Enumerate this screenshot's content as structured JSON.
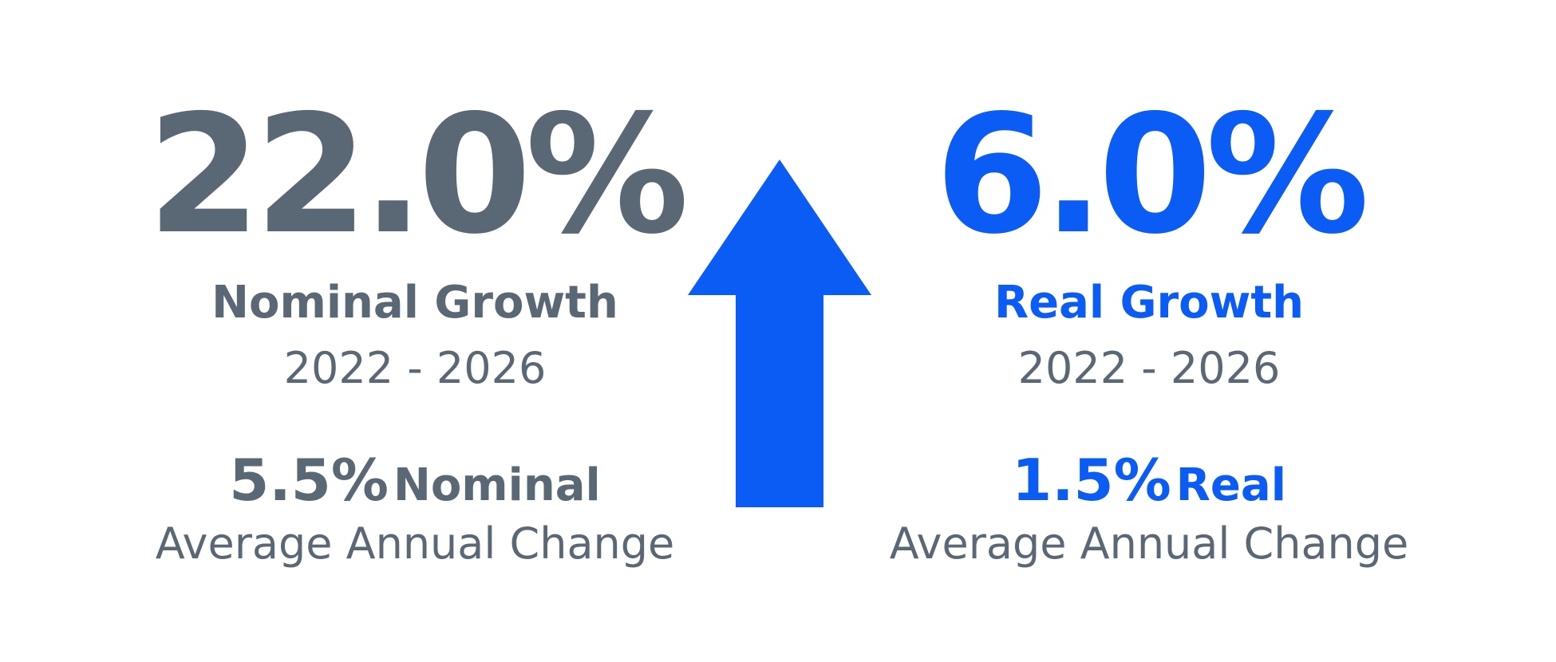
{
  "colors": {
    "nominal": "#5a6775",
    "real": "#0a5cf5",
    "arrow": "#0a5cf5"
  },
  "nominal": {
    "value": "22.0%",
    "label": "Nominal Growth",
    "period": "2022 - 2026",
    "annual_value": "5.5%",
    "annual_unit": "Nominal",
    "annual_caption": "Average Annual Change"
  },
  "real": {
    "value": "6.0%",
    "label": "Real Growth",
    "period": "2022 - 2026",
    "annual_value": "1.5%",
    "annual_unit": "Real",
    "annual_caption": "Average Annual Change"
  },
  "arrow": {
    "icon": "up-arrow-icon"
  }
}
